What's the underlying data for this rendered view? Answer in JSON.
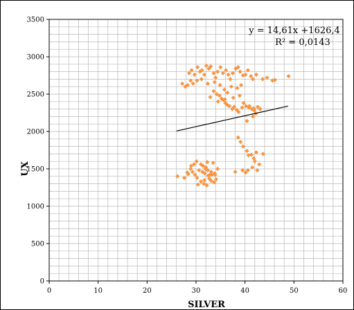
{
  "chart_data": {
    "type": "scatter",
    "title": "",
    "xlabel": "SILVER",
    "ylabel": "UX",
    "xlim": [
      0,
      60
    ],
    "ylim": [
      0,
      3500
    ],
    "xticks": [
      0,
      10,
      20,
      30,
      40,
      50,
      60
    ],
    "xtick_labels": [
      "0",
      "10",
      "20",
      "30",
      "40",
      "50",
      "60"
    ],
    "yticks": [
      0,
      500,
      1000,
      1500,
      2000,
      2500,
      3000,
      3500
    ],
    "ytick_labels": [
      "0",
      "500",
      "1000",
      "1500",
      "2000",
      "2500",
      "3000",
      "3500"
    ],
    "grid": true,
    "grid_minor_x": 2,
    "grid_minor_y": 100,
    "colors": {
      "point": "#F79646",
      "trendline": "#000000",
      "grid": "#B8B8B8",
      "frame": "#000000"
    },
    "annotations": [
      "y = 14,61x +1626,4",
      "R² = 0,0143"
    ],
    "trendline": {
      "slope": 14.61,
      "intercept": 1626.4,
      "x_range": [
        26,
        48.8
      ]
    },
    "series": [
      {
        "x": [
          27.2,
          27.8,
          28.3,
          28.9,
          29.4,
          28.6,
          29.1,
          29.7,
          30.3,
          30.8,
          31.2,
          31.7,
          32.1,
          32.6,
          33.0,
          33.6,
          34.0,
          34.4,
          35.0,
          35.5,
          36.1,
          36.6,
          37.0,
          37.5,
          38.1,
          38.6,
          39.0,
          39.6,
          40.1,
          40.6,
          41.2,
          41.6,
          42.3,
          43.6,
          44.5,
          45.6,
          46.1,
          48.9,
          30.2,
          31.1,
          32.4,
          33.8,
          34.9,
          35.8,
          36.4,
          37.2,
          38.4,
          39.2,
          33.6,
          34.2,
          34.8,
          35.2,
          35.6,
          36.0,
          36.3,
          36.8,
          37.4,
          37.8,
          38.3,
          38.7,
          39.4,
          40.2,
          40.8,
          41.4,
          41.9,
          42.2,
          41.6,
          40.4,
          32.9,
          34.5,
          35.9,
          37.6,
          38.9,
          39.7,
          40.9,
          41.8,
          42.6,
          43.1,
          42.3,
          41.3,
          40.4,
          39.6,
          39.1,
          38.6,
          40.7,
          41.8,
          43.7,
          42.9,
          42.5,
          42.0,
          41.5,
          40.6,
          40.1,
          26.2,
          27.6,
          28.4,
          28.9,
          29.3,
          29.8,
          30.2,
          30.6,
          31.0,
          31.3,
          31.7,
          32.0,
          32.4,
          32.8,
          33.1,
          33.5,
          33.8,
          34.1,
          34.4,
          29.6,
          30.4,
          31.0,
          31.6,
          32.2,
          32.7,
          33.2,
          33.7,
          30.1,
          31.4,
          32.3,
          33.1,
          31.9,
          32.5,
          29.0,
          28.2,
          31.8,
          33.9,
          38.0,
          39.5
        ],
        "y": [
          2640,
          2600,
          2620,
          2680,
          2640,
          2780,
          2820,
          2760,
          2860,
          2800,
          2820,
          2760,
          2880,
          2840,
          2870,
          2780,
          2720,
          2800,
          2860,
          2780,
          2820,
          2760,
          2700,
          2780,
          2840,
          2860,
          2800,
          2750,
          2760,
          2820,
          2740,
          2700,
          2760,
          2700,
          2720,
          2680,
          2690,
          2740,
          2680,
          2700,
          2640,
          2660,
          2620,
          2560,
          2520,
          2600,
          2580,
          2620,
          2540,
          2500,
          2480,
          2440,
          2420,
          2380,
          2360,
          2340,
          2300,
          2330,
          2290,
          2260,
          2320,
          2340,
          2320,
          2300,
          2280,
          2240,
          2200,
          2140,
          2460,
          2400,
          2430,
          2450,
          2480,
          2380,
          2340,
          2310,
          2330,
          2300,
          1720,
          1690,
          1740,
          1800,
          1860,
          1920,
          1680,
          1640,
          1700,
          1560,
          1480,
          1600,
          1520,
          1480,
          1450,
          1400,
          1380,
          1430,
          1500,
          1460,
          1420,
          1380,
          1480,
          1560,
          1460,
          1350,
          1520,
          1480,
          1420,
          1340,
          1580,
          1440,
          1360,
          1500,
          1560,
          1290,
          1330,
          1300,
          1280,
          1370,
          1420,
          1320,
          1600,
          1540,
          1590,
          1460,
          1500,
          1410,
          1540,
          1450,
          1440,
          1420,
          1460,
          1480
        ]
      }
    ]
  }
}
